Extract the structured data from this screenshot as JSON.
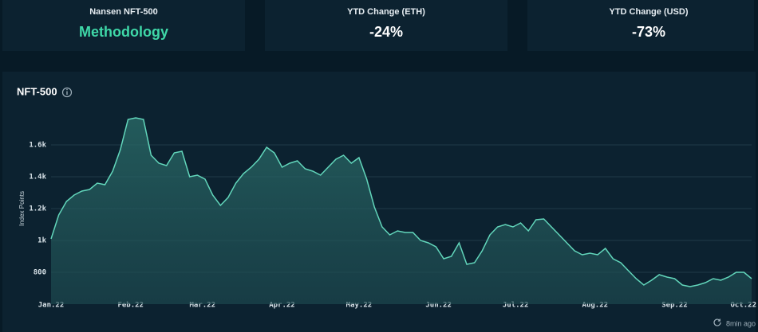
{
  "cards": [
    {
      "title": "Nansen NFT-500",
      "value": "Methodology"
    },
    {
      "title": "YTD Change (ETH)",
      "value": "-24%"
    },
    {
      "title": "YTD Change (USD)",
      "value": "-73%"
    }
  ],
  "chart_data": {
    "type": "area",
    "title": "NFT-500",
    "y_label": "Index Points",
    "color": "#62d6bb",
    "x": [
      0,
      3,
      6,
      9,
      12,
      15,
      18,
      21,
      24,
      27,
      30,
      33,
      36,
      39,
      42,
      45,
      48,
      51,
      54,
      57,
      60,
      63,
      66,
      69,
      72,
      75,
      78,
      81,
      84,
      87,
      90,
      93,
      96,
      99,
      102,
      105,
      108,
      111,
      114,
      117,
      120,
      123,
      126,
      129,
      132,
      135,
      138,
      141,
      144,
      147,
      150,
      153,
      156,
      159,
      162,
      165,
      168,
      171,
      174,
      177,
      180,
      183,
      186,
      189,
      192,
      195,
      198,
      201,
      204,
      207,
      210,
      213,
      216,
      219,
      222,
      225,
      228,
      231,
      234,
      237,
      240,
      243,
      246,
      249,
      252,
      255,
      258,
      261,
      264,
      267,
      270,
      273
    ],
    "values": [
      1010,
      1160,
      1245,
      1285,
      1310,
      1320,
      1360,
      1350,
      1435,
      1570,
      1760,
      1770,
      1760,
      1535,
      1485,
      1470,
      1550,
      1560,
      1400,
      1410,
      1385,
      1285,
      1220,
      1270,
      1360,
      1420,
      1460,
      1510,
      1585,
      1550,
      1460,
      1485,
      1500,
      1450,
      1435,
      1410,
      1460,
      1510,
      1535,
      1485,
      1520,
      1385,
      1210,
      1085,
      1035,
      1060,
      1050,
      1050,
      1000,
      985,
      960,
      885,
      900,
      985,
      850,
      860,
      935,
      1035,
      1085,
      1100,
      1085,
      1110,
      1060,
      1130,
      1135,
      1085,
      1035,
      985,
      935,
      910,
      920,
      910,
      950,
      885,
      860,
      810,
      760,
      720,
      750,
      785,
      770,
      760,
      720,
      710,
      720,
      735,
      760,
      750,
      770,
      800,
      800,
      760
    ],
    "xlim": [
      0,
      273
    ],
    "xticks": [
      {
        "value": 0,
        "label": "Jan.22"
      },
      {
        "value": 31,
        "label": "Feb.22"
      },
      {
        "value": 59,
        "label": "Mar.22"
      },
      {
        "value": 90,
        "label": "Apr.22"
      },
      {
        "value": 120,
        "label": "May.22"
      },
      {
        "value": 151,
        "label": "Jun.22"
      },
      {
        "value": 181,
        "label": "Jul.22"
      },
      {
        "value": 212,
        "label": "Aug.22"
      },
      {
        "value": 243,
        "label": "Sep.22"
      },
      {
        "value": 273,
        "label": "Oct.22"
      }
    ],
    "ylim": [
      600,
      1800
    ],
    "yticks": [
      800,
      {
        "value": 1000,
        "label": "1k"
      },
      {
        "value": 1200,
        "label": "1.2k"
      },
      {
        "value": 1400,
        "label": "1.4k"
      },
      {
        "value": 1600,
        "label": "1.6k"
      }
    ],
    "grid": true
  },
  "updated": "8min ago"
}
